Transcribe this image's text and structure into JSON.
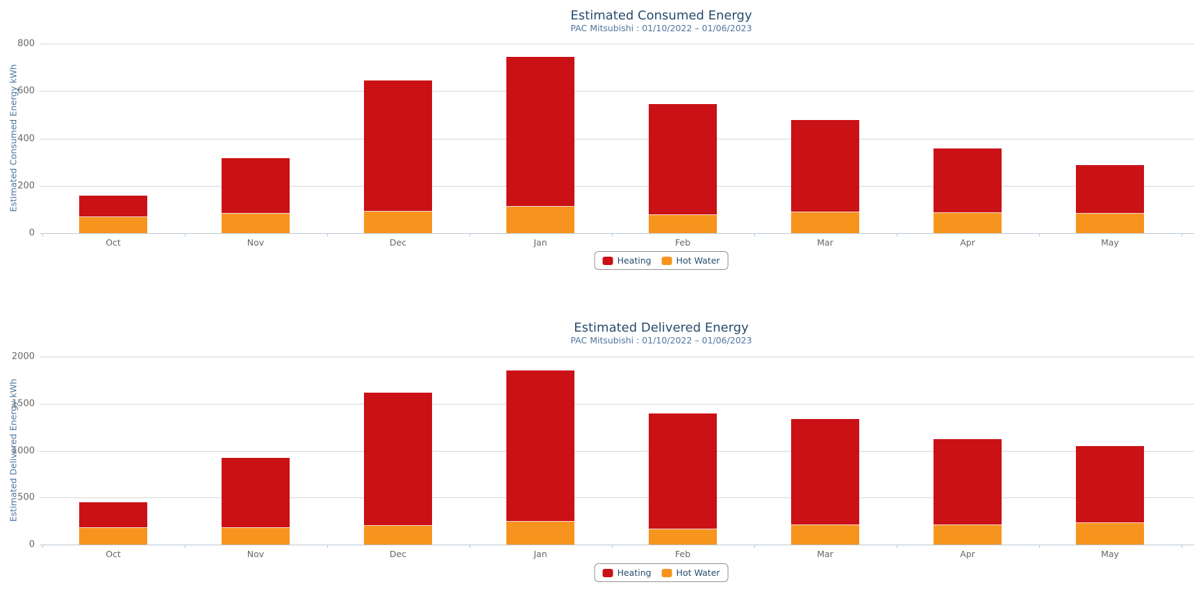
{
  "colors": {
    "heating": "#CA1116",
    "hot_water": "#F7941D",
    "title_text": "#274B6D",
    "subtitle_text": "#4D759E",
    "axis_text": "#666666"
  },
  "chart_data": [
    {
      "type": "bar",
      "stacked": true,
      "title": "Estimated Consumed Energy",
      "subtitle": "PAC Mitsubishi : 01/10/2022 – 01/06/2023",
      "xlabel": "",
      "ylabel": "Estimated Consumed Energy kWh",
      "ylim": [
        0,
        800
      ],
      "y_ticks": [
        0,
        200,
        400,
        600,
        800
      ],
      "grid": true,
      "legend_position": "bottom-center",
      "categories": [
        "Oct",
        "Nov",
        "Dec",
        "Jan",
        "Feb",
        "Mar",
        "Apr",
        "May"
      ],
      "series": [
        {
          "name": "Heating",
          "color": "#CA1116",
          "values": [
            92,
            235,
            555,
            631,
            467,
            391,
            272,
            205
          ]
        },
        {
          "name": "Hot Water",
          "color": "#F7941D",
          "values": [
            67,
            81,
            90,
            112,
            77,
            88,
            85,
            83
          ]
        }
      ],
      "stack_totals": [
        159,
        316,
        645,
        743,
        544,
        479,
        357,
        288
      ]
    },
    {
      "type": "bar",
      "stacked": true,
      "title": "Estimated Delivered Energy",
      "subtitle": "PAC Mitsubishi : 01/10/2022 – 01/06/2023",
      "xlabel": "",
      "ylabel": "Estimated Delivered Energy kWh",
      "ylim": [
        0,
        2000
      ],
      "y_ticks": [
        0,
        500,
        1000,
        1500,
        2000
      ],
      "grid": true,
      "legend_position": "bottom-center",
      "categories": [
        "Oct",
        "Nov",
        "Dec",
        "Jan",
        "Feb",
        "Mar",
        "Apr",
        "May"
      ],
      "series": [
        {
          "name": "Heating",
          "color": "#CA1116",
          "values": [
            270,
            750,
            1420,
            1610,
            1235,
            1125,
            910,
            820
          ]
        },
        {
          "name": "Hot Water",
          "color": "#F7941D",
          "values": [
            180,
            175,
            200,
            240,
            160,
            210,
            210,
            230
          ]
        }
      ],
      "stack_totals": [
        450,
        925,
        1620,
        1850,
        1395,
        1335,
        1120,
        1050
      ]
    }
  ]
}
